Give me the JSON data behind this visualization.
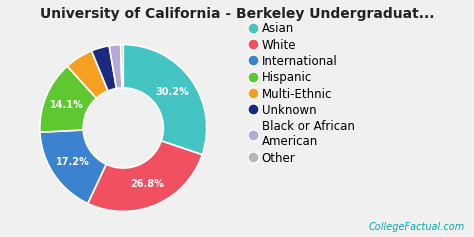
{
  "title": "University of California - Berkeley Undergraduat...",
  "slices": [
    {
      "label": "Asian",
      "value": 30.2,
      "color": "#45C4C4"
    },
    {
      "label": "White",
      "value": 26.8,
      "color": "#F05060"
    },
    {
      "label": "International",
      "value": 17.2,
      "color": "#3B82D0"
    },
    {
      "label": "Hispanic",
      "value": 14.1,
      "color": "#5DC830"
    },
    {
      "label": "Multi-Ethnic",
      "value": 5.5,
      "color": "#F5A020"
    },
    {
      "label": "Unknown",
      "value": 3.5,
      "color": "#1A2A80"
    },
    {
      "label": "Black or African\nAmerican",
      "value": 2.2,
      "color": "#B8A8D8"
    },
    {
      "label": "Other",
      "value": 0.5,
      "color": "#B8B8B8"
    }
  ],
  "label_indices": [
    0,
    1,
    2,
    3
  ],
  "background_color": "#f0f0f0",
  "title_fontsize": 10,
  "legend_fontsize": 8.5,
  "watermark": "CollegeFactual.com",
  "watermark_color": "#00AAAA"
}
